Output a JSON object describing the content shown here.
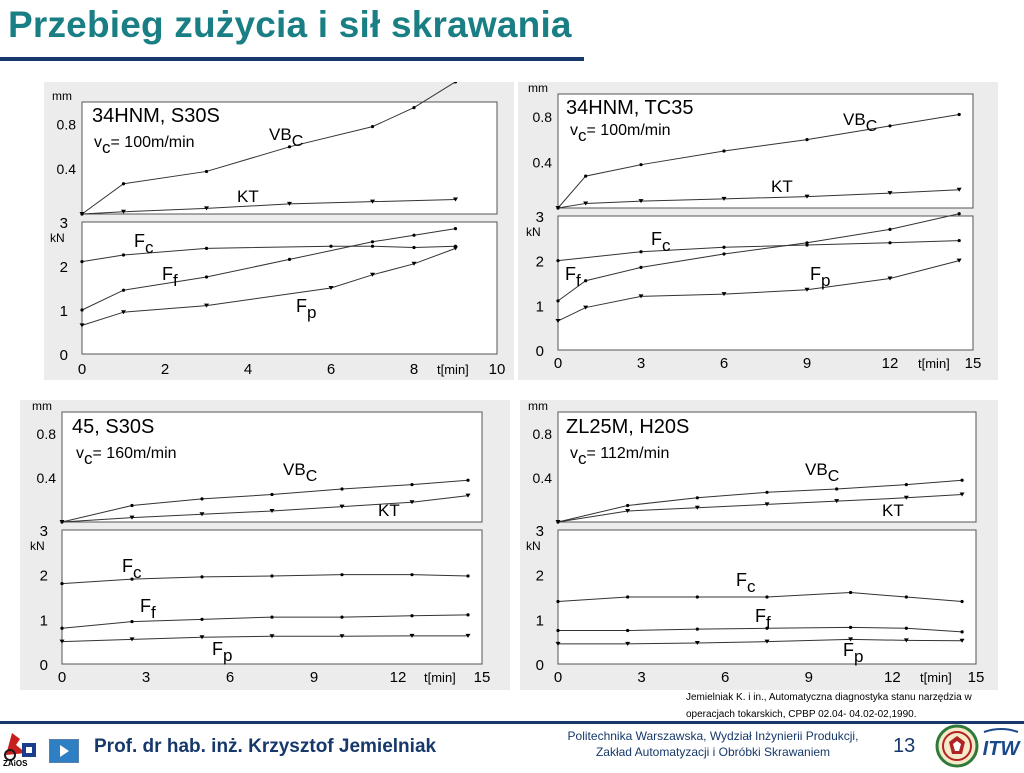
{
  "page": {
    "title": "Przebieg zużycia i sił skrawania",
    "citation_line1": "Jemielniak K. i in., Automatyczna diagnostyka stanu narzędzia w",
    "citation_line2": "operacjach tokarskich, CPBP 02.04- 04.02-02,1990.",
    "author": "Prof. dr hab. inż. Krzysztof Jemielniak",
    "institution_line1": "Politechnika Warszawska, Wydział Inżynierii Produkcji,",
    "institution_line2": "Zakład Automatyzacji i Obróbki Skrawaniem",
    "page_number": "13",
    "left_logo_text": "ZAiOS",
    "right_logo_text": "ITW"
  },
  "chart_data": [
    {
      "type": "line",
      "material": "34HNM, S30S",
      "vc_value": "= 100m/min",
      "x_label": "t[min]",
      "xlim": [
        0,
        10
      ],
      "x_ticks": [
        "0",
        "2",
        "4",
        "6",
        "8",
        "10"
      ],
      "wear": {
        "unit": "mm",
        "ylim": [
          0,
          1.0
        ],
        "y_ticks": [
          "0.4",
          "0.8"
        ],
        "series": [
          {
            "name": "VB",
            "sub": "C",
            "marker": "dot",
            "x": [
              0,
              1,
              3,
              5,
              7,
              8,
              9
            ],
            "y": [
              0.0,
              0.27,
              0.38,
              0.6,
              0.78,
              0.95,
              1.18
            ]
          },
          {
            "name": "KT",
            "sub": "",
            "marker": "tri",
            "x": [
              0,
              1,
              3,
              5,
              7,
              9
            ],
            "y": [
              0.0,
              0.02,
              0.05,
              0.09,
              0.11,
              0.13
            ]
          }
        ]
      },
      "force": {
        "unit": "kN",
        "ylim": [
          0,
          3
        ],
        "y_ticks": [
          "0",
          "1",
          "2",
          "3"
        ],
        "series": [
          {
            "name": "F",
            "sub": "c",
            "marker": "dot",
            "x": [
              0,
              1,
              3,
              6,
              7,
              8,
              9
            ],
            "y": [
              2.1,
              2.25,
              2.4,
              2.45,
              2.45,
              2.42,
              2.45
            ]
          },
          {
            "name": "F",
            "sub": "f",
            "marker": "dot",
            "x": [
              0,
              1,
              3,
              5,
              7,
              8,
              9
            ],
            "y": [
              1.0,
              1.45,
              1.75,
              2.15,
              2.55,
              2.7,
              2.85
            ]
          },
          {
            "name": "F",
            "sub": "p",
            "marker": "tri",
            "x": [
              0,
              1,
              3,
              6,
              7,
              8,
              9
            ],
            "y": [
              0.65,
              0.95,
              1.1,
              1.5,
              1.8,
              2.05,
              2.4
            ]
          }
        ]
      }
    },
    {
      "type": "line",
      "material": "34HNM, TC35",
      "vc_value": "= 100m/min",
      "x_label": "t[min]",
      "xlim": [
        0,
        15
      ],
      "x_ticks": [
        "0",
        "3",
        "6",
        "9",
        "12",
        "15"
      ],
      "wear": {
        "unit": "mm",
        "ylim": [
          0,
          1.0
        ],
        "y_ticks": [
          "0.4",
          "0.8"
        ],
        "series": [
          {
            "name": "VB",
            "sub": "C",
            "marker": "dot",
            "x": [
              0,
              1,
              3,
              6,
              9,
              12,
              14.5
            ],
            "y": [
              0.0,
              0.28,
              0.38,
              0.5,
              0.6,
              0.72,
              0.82
            ]
          },
          {
            "name": "KT",
            "sub": "",
            "marker": "tri",
            "x": [
              0,
              1,
              3,
              6,
              9,
              12,
              14.5
            ],
            "y": [
              0.0,
              0.04,
              0.06,
              0.08,
              0.1,
              0.13,
              0.16
            ]
          }
        ]
      },
      "force": {
        "unit": "kN",
        "ylim": [
          0,
          3
        ],
        "y_ticks": [
          "0",
          "1",
          "2",
          "3"
        ],
        "series": [
          {
            "name": "F",
            "sub": "c",
            "marker": "dot",
            "x": [
              0,
              3,
              6,
              9,
              12,
              14.5
            ],
            "y": [
              2.0,
              2.2,
              2.3,
              2.35,
              2.4,
              2.45
            ]
          },
          {
            "name": "F",
            "sub": "f",
            "marker": "dot",
            "x": [
              0,
              1,
              3,
              6,
              9,
              12,
              14.5
            ],
            "y": [
              1.1,
              1.55,
              1.85,
              2.15,
              2.4,
              2.7,
              3.05
            ]
          },
          {
            "name": "F",
            "sub": "p",
            "marker": "tri",
            "x": [
              0,
              1,
              3,
              6,
              9,
              12,
              14.5
            ],
            "y": [
              0.65,
              0.95,
              1.2,
              1.25,
              1.35,
              1.6,
              2.0
            ]
          }
        ]
      }
    },
    {
      "type": "line",
      "material": "45, S30S",
      "vc_value": "= 160m/min",
      "x_label": "t[min]",
      "xlim": [
        0,
        15
      ],
      "x_ticks": [
        "0",
        "3",
        "6",
        "9",
        "12",
        "15"
      ],
      "wear": {
        "unit": "mm",
        "ylim": [
          0,
          1.0
        ],
        "y_ticks": [
          "0.4",
          "0.8"
        ],
        "series": [
          {
            "name": "VB",
            "sub": "C",
            "marker": "dot",
            "x": [
              0,
              2.5,
              5,
              7.5,
              10,
              12.5,
              14.5
            ],
            "y": [
              0.0,
              0.15,
              0.21,
              0.25,
              0.3,
              0.34,
              0.38
            ]
          },
          {
            "name": "KT",
            "sub": "",
            "marker": "tri",
            "x": [
              0,
              2.5,
              5,
              7.5,
              10,
              12.5,
              14.5
            ],
            "y": [
              0.0,
              0.04,
              0.07,
              0.1,
              0.14,
              0.18,
              0.24
            ]
          }
        ]
      },
      "force": {
        "unit": "kN",
        "ylim": [
          0,
          3
        ],
        "y_ticks": [
          "0",
          "1",
          "2",
          "3"
        ],
        "series": [
          {
            "name": "F",
            "sub": "c",
            "marker": "dot",
            "x": [
              0,
              2.5,
              5,
              7.5,
              10,
              12.5,
              14.5
            ],
            "y": [
              1.8,
              1.9,
              1.95,
              1.97,
              2.0,
              2.0,
              1.97
            ]
          },
          {
            "name": "F",
            "sub": "f",
            "marker": "dot",
            "x": [
              0,
              2.5,
              5,
              7.5,
              10,
              12.5,
              14.5
            ],
            "y": [
              0.8,
              0.95,
              1.0,
              1.05,
              1.05,
              1.08,
              1.1
            ]
          },
          {
            "name": "F",
            "sub": "p",
            "marker": "tri",
            "x": [
              0,
              2.5,
              5,
              7.5,
              10,
              12.5,
              14.5
            ],
            "y": [
              0.5,
              0.55,
              0.6,
              0.62,
              0.62,
              0.63,
              0.63
            ]
          }
        ]
      }
    },
    {
      "type": "line",
      "material": "ZL25M, H20S",
      "vc_value": "= 112m/min",
      "x_label": "t[min]",
      "xlim": [
        0,
        15
      ],
      "x_ticks": [
        "0",
        "3",
        "6",
        "9",
        "12",
        "15"
      ],
      "wear": {
        "unit": "mm",
        "ylim": [
          0,
          1.0
        ],
        "y_ticks": [
          "0.4",
          "0.8"
        ],
        "series": [
          {
            "name": "VB",
            "sub": "C",
            "marker": "dot",
            "x": [
              0,
              2.5,
              5,
              7.5,
              10,
              12.5,
              14.5
            ],
            "y": [
              0.0,
              0.15,
              0.22,
              0.27,
              0.3,
              0.34,
              0.38
            ]
          },
          {
            "name": "KT",
            "sub": "",
            "marker": "tri",
            "x": [
              0,
              2.5,
              5,
              7.5,
              10,
              12.5,
              14.5
            ],
            "y": [
              0.0,
              0.1,
              0.13,
              0.16,
              0.19,
              0.22,
              0.25
            ]
          }
        ]
      },
      "force": {
        "unit": "kN",
        "ylim": [
          0,
          3
        ],
        "y_ticks": [
          "0",
          "1",
          "2",
          "3"
        ],
        "series": [
          {
            "name": "F",
            "sub": "c",
            "marker": "dot",
            "x": [
              0,
              2.5,
              5,
              7.5,
              10.5,
              12.5,
              14.5
            ],
            "y": [
              1.4,
              1.5,
              1.5,
              1.5,
              1.6,
              1.5,
              1.4
            ]
          },
          {
            "name": "F",
            "sub": "f",
            "marker": "dot",
            "x": [
              0,
              2.5,
              5,
              7.5,
              10.5,
              12.5,
              14.5
            ],
            "y": [
              0.75,
              0.75,
              0.78,
              0.8,
              0.82,
              0.8,
              0.72
            ]
          },
          {
            "name": "F",
            "sub": "p",
            "marker": "tri",
            "x": [
              0,
              2.5,
              5,
              7.5,
              10.5,
              12.5,
              14.5
            ],
            "y": [
              0.45,
              0.45,
              0.47,
              0.5,
              0.55,
              0.53,
              0.52
            ]
          }
        ]
      }
    }
  ]
}
